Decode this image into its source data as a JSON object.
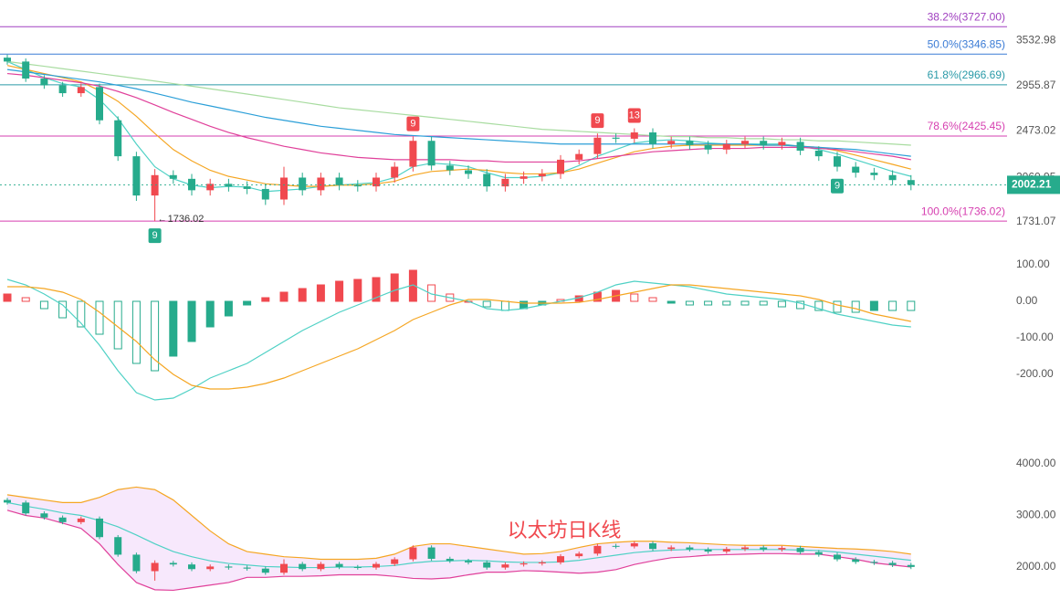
{
  "chart_data": [
    {
      "type": "candlestick",
      "log_scale": true,
      "ylim": [
        1658,
        4139
      ],
      "yticks": [
        3532.98,
        2955.87,
        2473.02,
        2060.95,
        1731.07
      ],
      "up_color": "#f0494f",
      "down_color": "#26ab8c",
      "open": [
        3300,
        3250,
        3040,
        2960,
        2870,
        2940,
        2580,
        2240,
        1920,
        2080,
        2050,
        1960,
        2010,
        1990,
        1970,
        1890,
        2060,
        1960,
        2060,
        2000,
        1990,
        2060,
        2150,
        2380,
        2160,
        2120,
        2090,
        1990,
        2050,
        2070,
        2090,
        2210,
        2260,
        2410,
        2400,
        2460,
        2350,
        2380,
        2340,
        2300,
        2350,
        2380,
        2340,
        2370,
        2290,
        2240,
        2150,
        2100,
        2080,
        2040
      ],
      "high": [
        3340,
        3290,
        3080,
        3000,
        2980,
        2980,
        2620,
        2280,
        2130,
        2120,
        2090,
        2050,
        2050,
        2030,
        2010,
        2150,
        2100,
        2100,
        2100,
        2040,
        2100,
        2190,
        2420,
        2420,
        2200,
        2160,
        2130,
        2090,
        2110,
        2130,
        2250,
        2300,
        2450,
        2450,
        2500,
        2500,
        2420,
        2420,
        2380,
        2390,
        2420,
        2420,
        2410,
        2410,
        2330,
        2280,
        2190,
        2140,
        2120,
        2080
      ],
      "low": [
        3210,
        3000,
        2920,
        2830,
        2830,
        2540,
        2200,
        1880,
        1736.02,
        2010,
        1920,
        1920,
        1950,
        1930,
        1850,
        1850,
        1920,
        1920,
        1960,
        1950,
        1950,
        2020,
        2110,
        2120,
        2080,
        2050,
        1950,
        1950,
        2010,
        2030,
        2050,
        2170,
        2220,
        2360,
        2360,
        2310,
        2310,
        2300,
        2260,
        2260,
        2310,
        2300,
        2300,
        2250,
        2200,
        2110,
        2060,
        2040,
        2000,
        1960
      ],
      "close": [
        3250,
        3040,
        2960,
        2870,
        2940,
        2580,
        2240,
        1920,
        2080,
        2050,
        1960,
        2010,
        1990,
        1970,
        1890,
        2060,
        1960,
        2060,
        2000,
        1990,
        2060,
        2150,
        2380,
        2160,
        2120,
        2090,
        1990,
        2050,
        2070,
        2090,
        2210,
        2260,
        2410,
        2400,
        2460,
        2350,
        2380,
        2340,
        2300,
        2350,
        2380,
        2340,
        2370,
        2290,
        2240,
        2150,
        2100,
        2080,
        2040,
        2002.21
      ],
      "series": [
        {
          "color": "#4fd1c5",
          "values": [
            3250,
            3150,
            3050,
            2980,
            2940,
            2800,
            2600,
            2350,
            2150,
            2050,
            2000,
            1980,
            1990,
            1985,
            1950,
            1960,
            1970,
            1990,
            2000,
            2010,
            2020,
            2060,
            2150,
            2180,
            2170,
            2150,
            2100,
            2060,
            2060,
            2070,
            2100,
            2160,
            2240,
            2300,
            2360,
            2380,
            2390,
            2380,
            2360,
            2350,
            2350,
            2350,
            2350,
            2330,
            2300,
            2260,
            2210,
            2160,
            2110,
            2070
          ]
        },
        {
          "color": "#f5a623",
          "values": [
            3200,
            3150,
            3100,
            3050,
            3000,
            2900,
            2780,
            2620,
            2450,
            2300,
            2200,
            2120,
            2070,
            2040,
            2010,
            2000,
            1990,
            1990,
            2000,
            2000,
            2010,
            2030,
            2080,
            2110,
            2120,
            2130,
            2120,
            2100,
            2090,
            2090,
            2100,
            2130,
            2180,
            2230,
            2280,
            2310,
            2330,
            2340,
            2340,
            2340,
            2340,
            2340,
            2340,
            2330,
            2320,
            2290,
            2250,
            2210,
            2170,
            2130
          ]
        },
        {
          "color": "#e0409a",
          "values": [
            3100,
            3080,
            3050,
            3020,
            2990,
            2950,
            2890,
            2820,
            2740,
            2660,
            2590,
            2520,
            2460,
            2410,
            2370,
            2330,
            2300,
            2270,
            2250,
            2230,
            2220,
            2210,
            2210,
            2210,
            2210,
            2200,
            2200,
            2190,
            2190,
            2190,
            2190,
            2200,
            2220,
            2240,
            2260,
            2280,
            2290,
            2300,
            2310,
            2310,
            2310,
            2320,
            2320,
            2320,
            2310,
            2300,
            2280,
            2260,
            2240,
            2210
          ]
        },
        {
          "color": "#2b9fd8",
          "values": [
            3150,
            3120,
            3090,
            3060,
            3030,
            3000,
            2960,
            2920,
            2870,
            2820,
            2770,
            2730,
            2690,
            2650,
            2610,
            2580,
            2550,
            2520,
            2500,
            2480,
            2460,
            2440,
            2430,
            2420,
            2410,
            2400,
            2390,
            2380,
            2370,
            2360,
            2350,
            2350,
            2350,
            2350,
            2350,
            2350,
            2350,
            2350,
            2350,
            2350,
            2350,
            2340,
            2340,
            2330,
            2320,
            2310,
            2300,
            2280,
            2260,
            2240
          ]
        },
        {
          "color": "#a8dca0",
          "values": [
            3250,
            3220,
            3190,
            3160,
            3130,
            3100,
            3070,
            3040,
            3010,
            2980,
            2950,
            2920,
            2890,
            2860,
            2830,
            2800,
            2770,
            2740,
            2710,
            2690,
            2670,
            2650,
            2630,
            2610,
            2590,
            2570,
            2550,
            2530,
            2510,
            2490,
            2480,
            2470,
            2460,
            2450,
            2440,
            2430,
            2420,
            2420,
            2410,
            2410,
            2400,
            2400,
            2390,
            2390,
            2380,
            2380,
            2370,
            2360,
            2350,
            2340
          ]
        }
      ],
      "fib_levels": [
        {
          "label": "38.2%(3727.00)",
          "value": 3727.0,
          "color": "#a040c0"
        },
        {
          "label": "50.0%(3346.85)",
          "value": 3346.85,
          "color": "#3a7bd5"
        },
        {
          "label": "61.8%(2966.69)",
          "value": 2966.69,
          "color": "#2a9aa8"
        },
        {
          "label": "78.6%(2425.45)",
          "value": 2425.45,
          "color": "#d63fb0"
        },
        {
          "label": "100.0%(1736.02)",
          "value": 1736.02,
          "color": "#d63fb0"
        }
      ],
      "td_labels": [
        {
          "label": "9",
          "index": 8,
          "color": "#26ab8c"
        },
        {
          "label": "9",
          "index": 22,
          "color": "#f0494f"
        },
        {
          "label": "9",
          "index": 32,
          "color": "#f0494f"
        },
        {
          "label": "13",
          "index": 34,
          "color": "#f0494f"
        },
        {
          "label": "9",
          "index": 45,
          "color": "#26ab8c"
        }
      ]
    },
    {
      "type": "macd",
      "ylim": [
        -300,
        150
      ],
      "yticks": [
        {
          "value": 100,
          "label": "100.00"
        },
        {
          "value": 0,
          "label": "0.00"
        },
        {
          "value": -100,
          "label": "-100.00"
        },
        {
          "value": -200,
          "label": "-200.00"
        }
      ],
      "values": [
        20,
        10,
        -20,
        -45,
        -70,
        -90,
        -130,
        -170,
        -190,
        -150,
        -110,
        -70,
        -40,
        -10,
        10,
        25,
        35,
        45,
        55,
        60,
        65,
        75,
        85,
        45,
        20,
        0,
        -15,
        -25,
        -20,
        -10,
        5,
        15,
        25,
        30,
        20,
        10,
        -5,
        -10,
        -10,
        -10,
        -10,
        -10,
        -15,
        -20,
        -25,
        -30,
        -30,
        -25,
        -25,
        -25
      ],
      "series": [
        {
          "color": "#4fd1c5",
          "values": [
            60,
            45,
            20,
            -10,
            -60,
            -120,
            -190,
            -250,
            -270,
            -265,
            -240,
            -210,
            -190,
            -170,
            -140,
            -110,
            -80,
            -55,
            -30,
            -10,
            10,
            30,
            45,
            20,
            10,
            0,
            -20,
            -25,
            -20,
            -10,
            0,
            10,
            25,
            45,
            55,
            50,
            45,
            40,
            30,
            20,
            15,
            10,
            5,
            -5,
            -20,
            -35,
            -45,
            -55,
            -65,
            -70
          ]
        },
        {
          "color": "#f5a623",
          "values": [
            40,
            40,
            35,
            25,
            5,
            -30,
            -70,
            -110,
            -160,
            -200,
            -230,
            -240,
            -240,
            -235,
            -225,
            -210,
            -190,
            -170,
            -150,
            -130,
            -105,
            -80,
            -50,
            -30,
            -10,
            5,
            5,
            0,
            -5,
            -5,
            -5,
            -3,
            5,
            15,
            25,
            35,
            45,
            45,
            40,
            35,
            30,
            25,
            20,
            15,
            5,
            -10,
            -20,
            -35,
            -45,
            -55
          ]
        }
      ]
    },
    {
      "type": "bollinger",
      "ylim": [
        1400,
        4600
      ],
      "yticks": [
        {
          "value": 4000,
          "label": "4000.00"
        },
        {
          "value": 3000,
          "label": "3000.00"
        },
        {
          "value": 2000,
          "label": "2000.00"
        }
      ],
      "annotation": "以太坊日K线",
      "band_color": "#f3defb",
      "series": [
        {
          "color": "#f5a623",
          "values": [
            3400,
            3350,
            3300,
            3250,
            3250,
            3350,
            3500,
            3550,
            3500,
            3300,
            3000,
            2700,
            2450,
            2300,
            2250,
            2200,
            2180,
            2150,
            2150,
            2150,
            2170,
            2250,
            2400,
            2450,
            2450,
            2400,
            2350,
            2300,
            2250,
            2260,
            2300,
            2380,
            2450,
            2480,
            2500,
            2500,
            2480,
            2470,
            2450,
            2430,
            2420,
            2420,
            2420,
            2400,
            2380,
            2360,
            2350,
            2330,
            2300,
            2250
          ]
        },
        {
          "color": "#4fd1c5",
          "values": [
            3250,
            3180,
            3120,
            3050,
            3000,
            2900,
            2780,
            2620,
            2450,
            2300,
            2200,
            2120,
            2070,
            2040,
            2010,
            2000,
            1990,
            1990,
            2000,
            2000,
            2010,
            2030,
            2080,
            2110,
            2120,
            2130,
            2120,
            2100,
            2090,
            2090,
            2100,
            2130,
            2180,
            2230,
            2280,
            2310,
            2330,
            2340,
            2340,
            2340,
            2340,
            2340,
            2340,
            2330,
            2320,
            2290,
            2250,
            2210,
            2170,
            2130
          ]
        },
        {
          "color": "#e0409a",
          "values": [
            3100,
            3000,
            2950,
            2850,
            2750,
            2450,
            2050,
            1700,
            1560,
            1550,
            1600,
            1650,
            1700,
            1800,
            1800,
            1820,
            1820,
            1830,
            1850,
            1850,
            1850,
            1820,
            1780,
            1770,
            1790,
            1850,
            1900,
            1900,
            1930,
            1920,
            1900,
            1880,
            1900,
            1950,
            2050,
            2120,
            2180,
            2200,
            2230,
            2240,
            2250,
            2260,
            2260,
            2250,
            2250,
            2200,
            2150,
            2080,
            2040,
            2000
          ]
        }
      ]
    }
  ]
}
